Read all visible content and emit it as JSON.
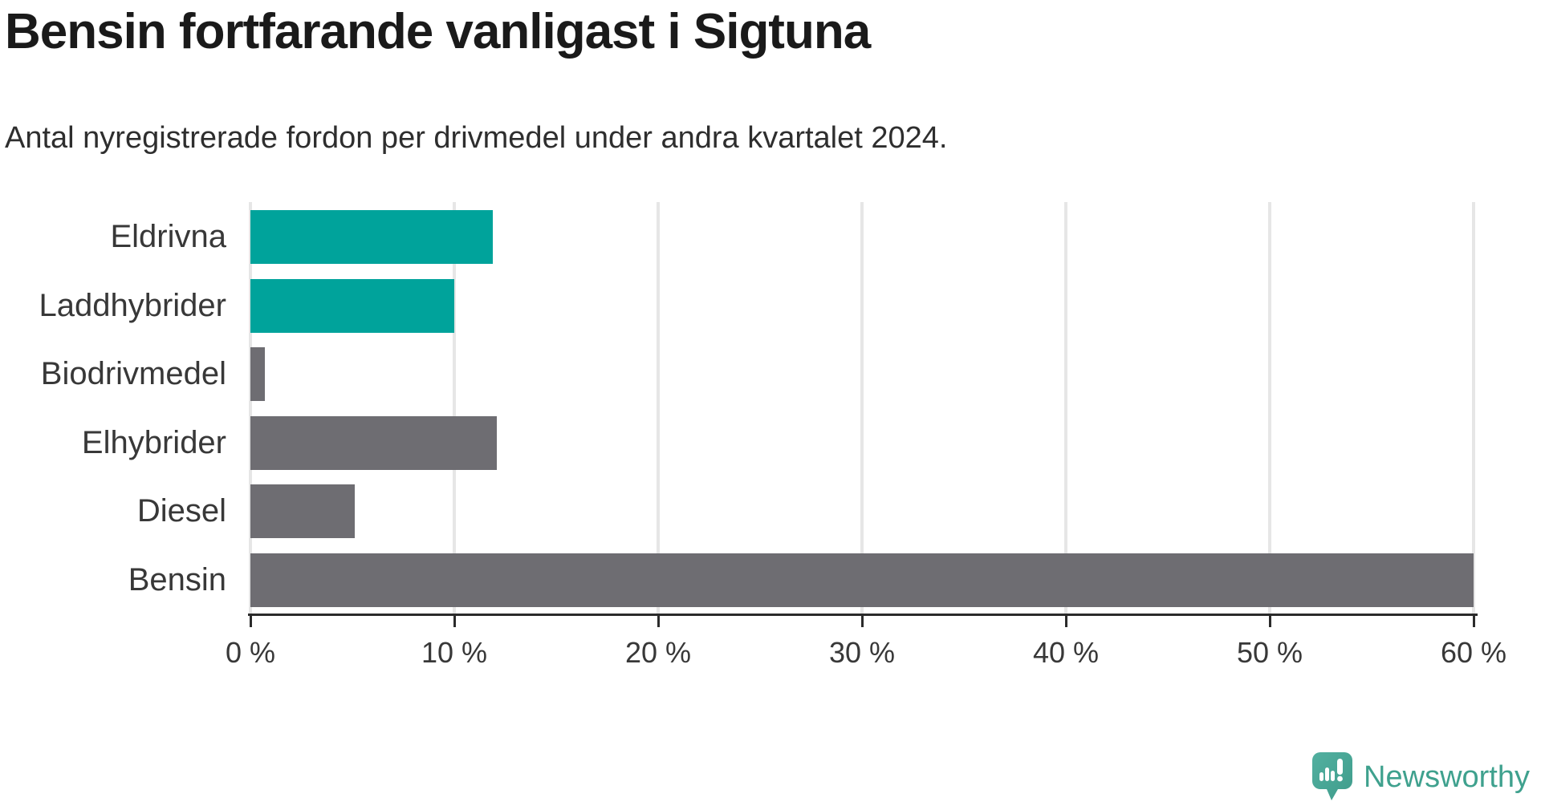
{
  "title": "Bensin fortfarande vanligast i Sigtuna",
  "subtitle": "Antal nyregistrerade fordon per drivmedel under andra kvartalet 2024.",
  "chart_data": {
    "type": "bar",
    "orientation": "horizontal",
    "title": "Bensin fortfarande vanligast i Sigtuna",
    "subtitle": "Antal nyregistrerade fordon per drivmedel under andra kvartalet 2024.",
    "categories": [
      "Eldrivna",
      "Laddhybrider",
      "Biodrivmedel",
      "Elhybrider",
      "Diesel",
      "Bensin"
    ],
    "values": [
      11.9,
      10.0,
      0.7,
      12.1,
      5.1,
      60.0
    ],
    "unit": "%",
    "bar_colors": [
      "#00a39b",
      "#00a39b",
      "#6e6d72",
      "#6e6d72",
      "#6e6d72",
      "#6e6d72"
    ],
    "xlabel": "",
    "ylabel": "",
    "xlim": [
      0,
      60
    ],
    "x_ticks": [
      0,
      10,
      20,
      30,
      40,
      50,
      60
    ],
    "x_tick_labels": [
      "0 %",
      "10 %",
      "20 %",
      "30 %",
      "40 %",
      "50 %",
      "60 %"
    ],
    "grid": true,
    "gridlines_vertical": true,
    "legend": false
  },
  "colors": {
    "highlight_teal": "#00a39b",
    "bar_gray": "#6e6d72",
    "gridline": "#e6e6e6",
    "axis_line": "#2b2b2b",
    "title_text": "#1a1a1a",
    "label_text": "#383838",
    "logo_teal": "#3fa18e"
  },
  "branding": {
    "logo_text": "Newsworthy",
    "logo_icon": "newsworthy-bubble-barchart-icon"
  }
}
